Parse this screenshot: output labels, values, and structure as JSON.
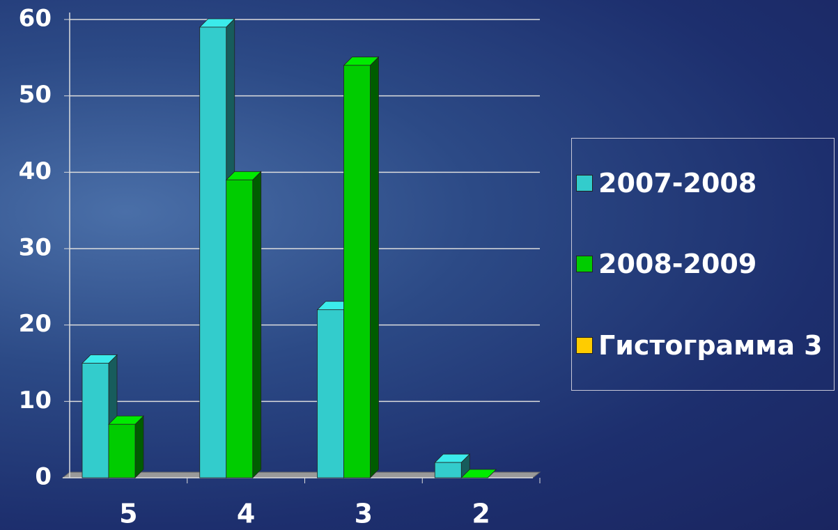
{
  "chart_data": {
    "type": "bar3d",
    "categories": [
      "5",
      "4",
      "3",
      "2"
    ],
    "series": [
      {
        "name": "2007-2008",
        "color": "#33cccc",
        "values": [
          15,
          59,
          22,
          2
        ]
      },
      {
        "name": "2008-2009",
        "color": "#00cc00",
        "values": [
          7,
          39,
          54,
          0
        ]
      },
      {
        "name": "Гистограмма 3",
        "color": "#ffcc00",
        "values": [
          null,
          null,
          null,
          null
        ]
      }
    ],
    "ylim": [
      0,
      60
    ],
    "yticks": [
      0,
      10,
      20,
      30,
      40,
      50,
      60
    ],
    "grid": true
  }
}
